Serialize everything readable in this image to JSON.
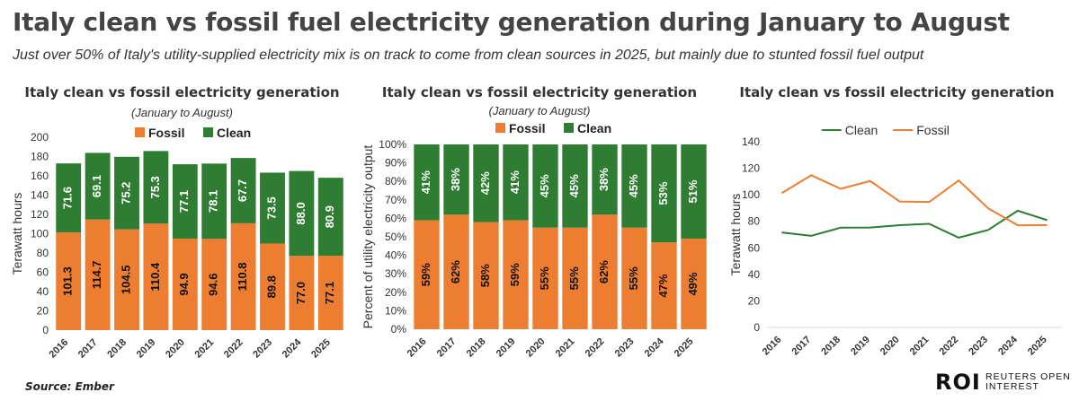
{
  "header": {
    "title": "Italy clean vs fossil fuel electricity generation during January to August",
    "subtitle": "Just over 50% of Italy's utility-supplied electricity mix is on track to come from clean sources in 2025, but mainly due to stunted fossil fuel output"
  },
  "footer": {
    "source": "Source: Ember",
    "logo_main": "ROI",
    "logo_sub_1": "REUTERS OPEN",
    "logo_sub_2": "INTEREST"
  },
  "colors": {
    "fossil": "#ED7D31",
    "clean": "#2E7D32"
  },
  "chart_data": [
    {
      "type": "bar",
      "stacked": true,
      "title": "Italy clean vs fossil electricity generation",
      "subtitle": "(January to August)",
      "ylabel": "Terawatt hours",
      "ylim": [
        0,
        200
      ],
      "yticks": [
        0,
        20,
        40,
        60,
        80,
        100,
        120,
        140,
        160,
        180,
        200
      ],
      "legend": "top",
      "categories": [
        "2016",
        "2017",
        "2018",
        "2019",
        "2020",
        "2021",
        "2022",
        "2023",
        "2024",
        "2025"
      ],
      "series": [
        {
          "name": "Fossil",
          "values": [
            101.3,
            114.7,
            104.5,
            110.4,
            94.9,
            94.6,
            110.8,
            89.8,
            77.0,
            77.1
          ]
        },
        {
          "name": "Clean",
          "values": [
            71.6,
            69.1,
            75.2,
            75.3,
            77.1,
            78.1,
            67.7,
            73.5,
            88.0,
            80.9
          ]
        }
      ]
    },
    {
      "type": "bar",
      "stacked": true,
      "percent": true,
      "title": "Italy clean vs fossil electricity generation",
      "subtitle": "(January to August)",
      "ylabel": "Percent of utility electricity output",
      "ylim": [
        0,
        100
      ],
      "yticks": [
        "0%",
        "10%",
        "20%",
        "30%",
        "40%",
        "50%",
        "60%",
        "70%",
        "80%",
        "90%",
        "100%"
      ],
      "legend": "top",
      "categories": [
        "2016",
        "2017",
        "2018",
        "2019",
        "2020",
        "2021",
        "2022",
        "2023",
        "2024",
        "2025"
      ],
      "series": [
        {
          "name": "Fossil",
          "values": [
            59,
            62,
            58,
            59,
            55,
            55,
            62,
            55,
            47,
            49
          ],
          "labels": [
            "59%",
            "62%",
            "58%",
            "59%",
            "55%",
            "55%",
            "62%",
            "55%",
            "47%",
            "49%"
          ]
        },
        {
          "name": "Clean",
          "values": [
            41,
            38,
            42,
            41,
            45,
            45,
            38,
            45,
            53,
            51
          ],
          "labels": [
            "41%",
            "38%",
            "42%",
            "41%",
            "45%",
            "45%",
            "38%",
            "45%",
            "53%",
            "51%"
          ]
        }
      ]
    },
    {
      "type": "line",
      "title": "Italy clean vs fossil electricity generation",
      "ylabel": "Terawatt hours",
      "ylim": [
        0,
        140
      ],
      "yticks": [
        0,
        20,
        40,
        60,
        80,
        100,
        120,
        140
      ],
      "legend": "top",
      "categories": [
        "2016",
        "2017",
        "2018",
        "2019",
        "2020",
        "2021",
        "2022",
        "2023",
        "2024",
        "2025"
      ],
      "series": [
        {
          "name": "Clean",
          "values": [
            71.6,
            69.1,
            75.2,
            75.3,
            77.1,
            78.1,
            67.7,
            73.5,
            88.0,
            80.9
          ]
        },
        {
          "name": "Fossil",
          "values": [
            101.3,
            114.7,
            104.5,
            110.4,
            94.9,
            94.6,
            110.8,
            89.8,
            77.0,
            77.1
          ]
        }
      ]
    }
  ]
}
